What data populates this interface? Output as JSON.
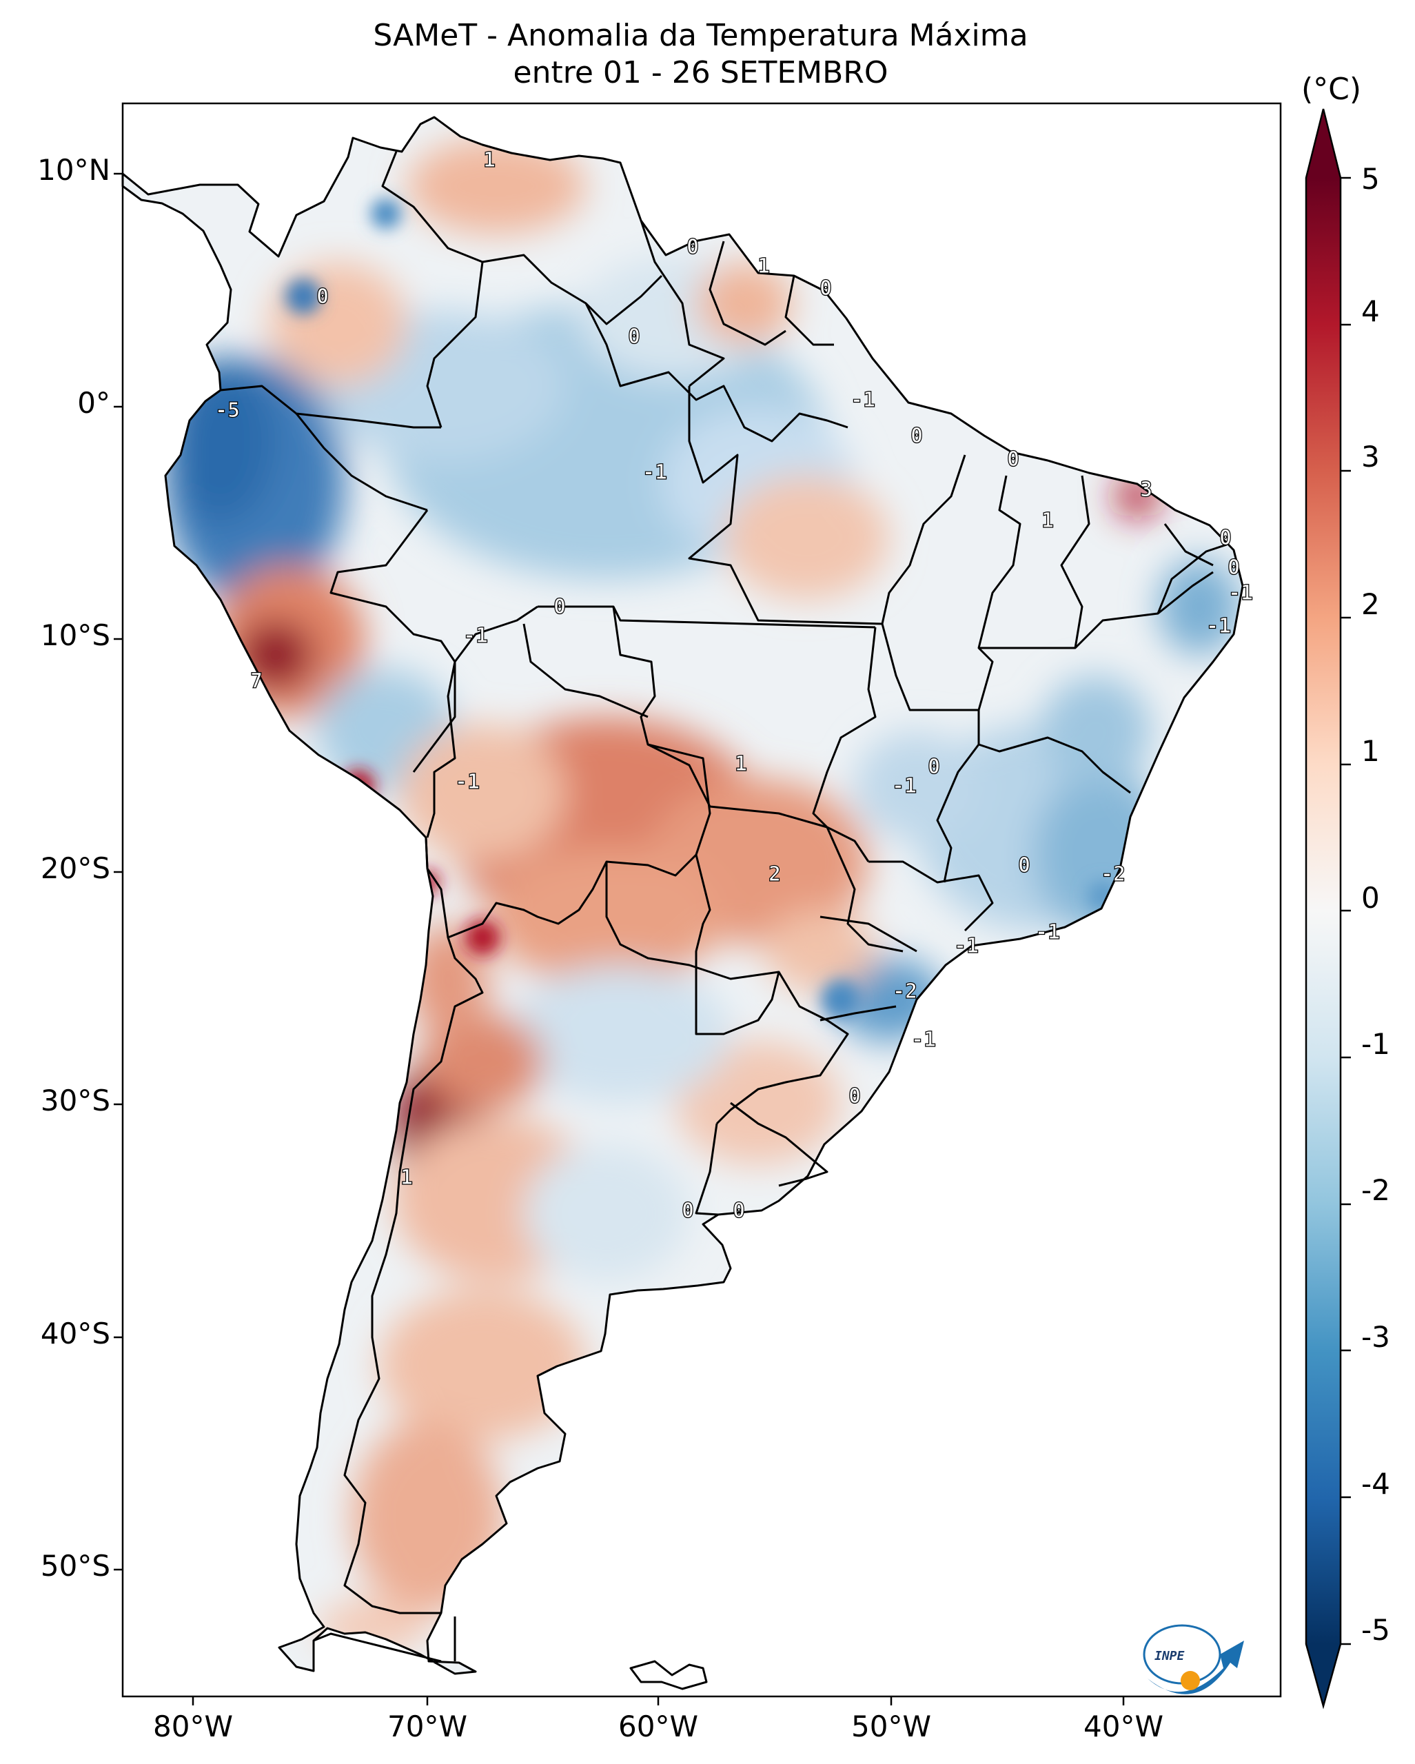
{
  "title_line1": "SAMeT - Anomalia da Temperatura Máxima",
  "title_line2": "entre 01 - 26 SETEMBRO",
  "colorbar": {
    "unit": "(°C)",
    "ticks": [
      "5",
      "4",
      "3",
      "2",
      "1",
      "0",
      "-1",
      "-2",
      "-3",
      "-4",
      "-5"
    ],
    "range": [
      -5,
      5
    ],
    "extend": "both",
    "colors": [
      "#053061",
      "#2166ac",
      "#4393c3",
      "#92c5de",
      "#d1e5f0",
      "#f7f7f7",
      "#fddbc7",
      "#f4a582",
      "#d6604d",
      "#b2182b",
      "#67001f"
    ]
  },
  "lat_labels": [
    "10°N",
    "0°",
    "10°S",
    "20°S",
    "30°S",
    "40°S",
    "50°S"
  ],
  "lon_labels": [
    "80°W",
    "70°W",
    "60°W",
    "50°W",
    "40°W"
  ],
  "contour_labels": [
    "1",
    "0",
    "1",
    "0",
    "0",
    "0",
    "-1",
    "-5",
    "-1",
    "0",
    "0",
    "3",
    "1",
    "0",
    "0",
    "-1",
    "-1",
    "0",
    "-1",
    "7",
    "1",
    "-1",
    "0",
    "-1",
    "2",
    "-2",
    "-1",
    "-1",
    "0",
    "-2",
    "-1",
    "0",
    "1",
    "0",
    "0"
  ],
  "logo_text": "INPE"
}
